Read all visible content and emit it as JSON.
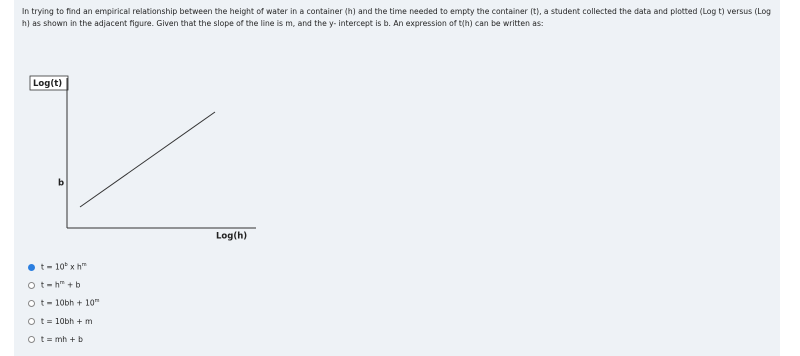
{
  "question": "In trying to find an empirical relationship between the height of water in a container (h) and the time needed to empty the container (t), a student collected the data and plotted (Log t) versus (Log h) as shown in the adjacent figure. Given that the slope of the line is m, and the y- intercept is b. An expression of t(h) can be written as:",
  "figure": {
    "y_label": "Log(t)",
    "x_label": "Log(h)",
    "intercept_label": "b"
  },
  "options": [
    {
      "parts": [
        "t = 10",
        "b",
        " x h",
        "m"
      ]
    },
    {
      "parts": [
        "t = h",
        "m",
        " + b"
      ]
    },
    {
      "parts": [
        "t = 10bh + 10",
        "m"
      ]
    },
    {
      "parts": [
        "t = 10bh + m"
      ]
    },
    {
      "parts": [
        "t = mh + b"
      ]
    }
  ],
  "selected_option": 0
}
